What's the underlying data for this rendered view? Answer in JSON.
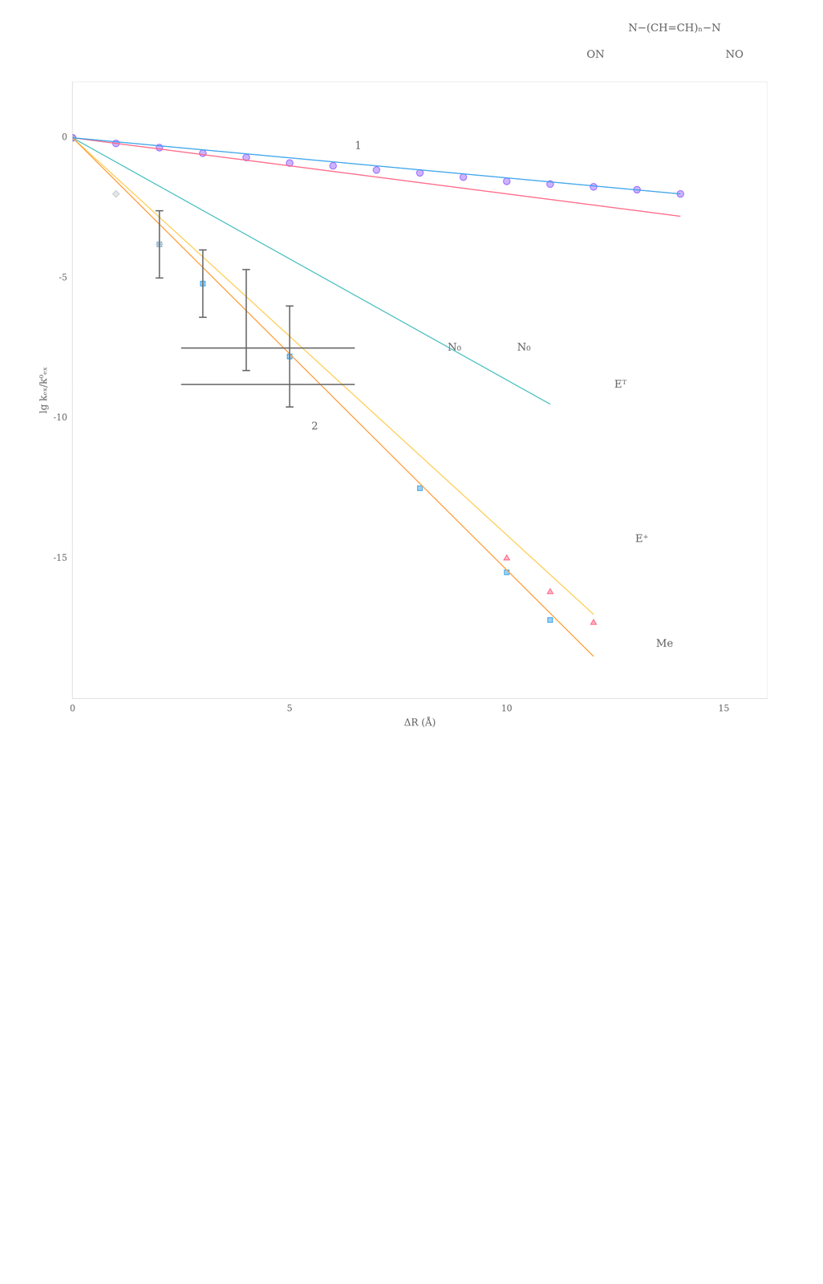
{
  "chart_data": {
    "type": "scatter",
    "xlabel": "ΔR (Å)",
    "ylabel": "lg kₑₓ/k⁰ₑₓ",
    "xlim": [
      0,
      16
    ],
    "ylim": [
      -20,
      2
    ],
    "xticks": [
      0,
      5,
      10,
      15
    ],
    "yticks": [
      0,
      -5,
      -10,
      -15
    ],
    "grid": false,
    "series": [
      {
        "type": "line",
        "x": [
          0,
          14
        ],
        "values": [
          0,
          -2.0
        ]
      },
      {
        "type": "line",
        "x": [
          0,
          14
        ],
        "values": [
          0,
          -2.8
        ]
      },
      {
        "type": "line",
        "x": [
          0,
          12
        ],
        "values": [
          0,
          -18.5
        ]
      },
      {
        "type": "line",
        "x": [
          0,
          12
        ],
        "values": [
          0,
          -17.0
        ]
      },
      {
        "type": "line",
        "x": [
          0,
          11
        ],
        "values": [
          0,
          -9.5
        ]
      },
      {
        "type": "scatter",
        "marker": "circle",
        "x": [
          0,
          1,
          2,
          3,
          4,
          5,
          6,
          7,
          8,
          9,
          10,
          11,
          12,
          13,
          14
        ],
        "values": [
          0,
          -0.2,
          -0.35,
          -0.55,
          -0.7,
          -0.9,
          -1.0,
          -1.15,
          -1.25,
          -1.4,
          -1.55,
          -1.65,
          -1.75,
          -1.85,
          -2.0
        ]
      },
      {
        "type": "scatter",
        "marker": "diamond",
        "x": [
          0,
          1,
          2
        ],
        "values": [
          0,
          -2.0,
          -3.8
        ]
      },
      {
        "type": "scatter",
        "marker": "square",
        "x": [
          2,
          3,
          5,
          8,
          10,
          11
        ],
        "values": [
          -3.8,
          -5.2,
          -7.8,
          -12.5,
          -15.5,
          -17.2
        ]
      },
      {
        "type": "scatter",
        "marker": "triangle",
        "x": [
          10,
          11,
          12
        ],
        "values": [
          -15.0,
          -16.2,
          -17.3
        ]
      },
      {
        "type": "errorbar",
        "x": [
          2,
          3,
          4,
          5
        ],
        "values": [
          -3.8,
          -5.2,
          -6.5,
          -7.8
        ],
        "yerr": [
          1.2,
          1.2,
          1.8,
          1.8
        ]
      },
      {
        "type": "errorbar",
        "x": [
          4.5,
          4.5
        ],
        "values": [
          -7.5,
          -8.8
        ],
        "xerr": [
          2.0,
          2.0
        ]
      }
    ],
    "annotations": [
      {
        "text": "1",
        "x": 6.5,
        "y": -0.5
      },
      {
        "text": "2",
        "x": 5.5,
        "y": -10.5
      },
      {
        "text": "ON"
      },
      {
        "text": "N−(CH=CH)ₙ−N"
      },
      {
        "text": "NO"
      },
      {
        "text": "N₀"
      },
      {
        "text": "N₀"
      },
      {
        "text": "Eᵀ"
      },
      {
        "text": "E⁺"
      },
      {
        "text": "Me"
      }
    ]
  }
}
